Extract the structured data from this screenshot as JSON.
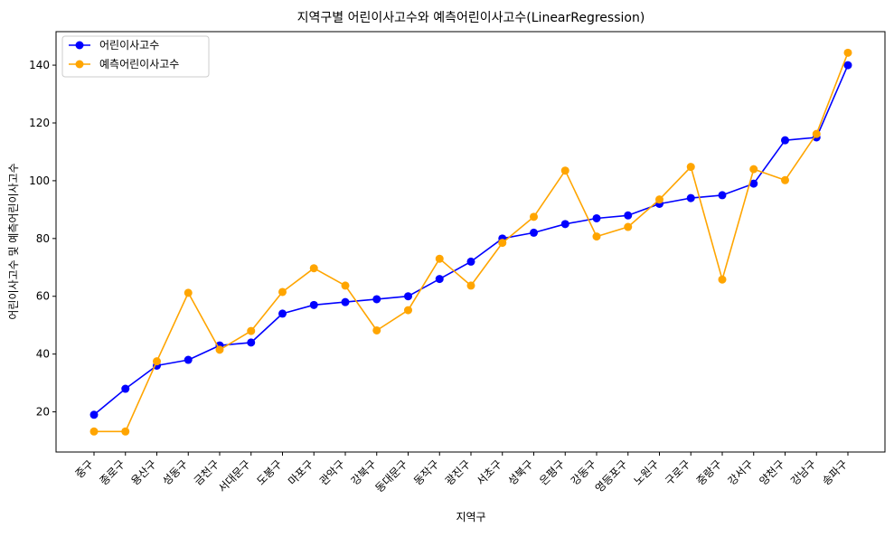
{
  "chart_data": {
    "type": "line",
    "title": "지역구별 어린이사고수와 예측어린이사고수(LinearRegression)",
    "xlabel": "지역구",
    "ylabel": "어린이사고수 및 예측어린이사고수",
    "categories": [
      "중구",
      "종로구",
      "용산구",
      "성동구",
      "금천구",
      "서대문구",
      "도봉구",
      "마포구",
      "관악구",
      "강북구",
      "동대문구",
      "동작구",
      "광진구",
      "서초구",
      "성북구",
      "은평구",
      "강동구",
      "영등포구",
      "노원구",
      "구로구",
      "중랑구",
      "강서구",
      "양천구",
      "강남구",
      "송파구"
    ],
    "ylim": [
      6.1,
      151.6
    ],
    "yticks": [
      20,
      40,
      60,
      80,
      100,
      120,
      140
    ],
    "grid": false,
    "legend_position": "top-left",
    "series": [
      {
        "name": "어린이사고수",
        "color": "#0000ff",
        "marker": "circle",
        "values": [
          19,
          28,
          36,
          38,
          43,
          44,
          54,
          57,
          58,
          59,
          60,
          66,
          72,
          80,
          82,
          85,
          87,
          88,
          92,
          94,
          95,
          99,
          114,
          115,
          140
        ]
      },
      {
        "name": "예측어린이사고수",
        "color": "#ffa500",
        "marker": "circle",
        "values": [
          13.2,
          13.2,
          37.5,
          61.2,
          41.5,
          48,
          61.5,
          69.7,
          63.7,
          48.2,
          55.2,
          73,
          63.7,
          78.5,
          87.5,
          103.5,
          80.7,
          84,
          93.5,
          104.8,
          65.8,
          104,
          100.2,
          116.2,
          144.3
        ]
      }
    ]
  }
}
